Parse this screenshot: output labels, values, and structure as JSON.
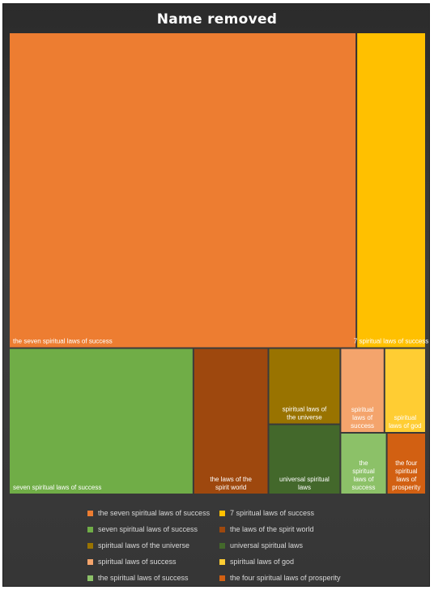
{
  "chart_data": {
    "type": "treemap",
    "title": "Name removed",
    "nodes": [
      {
        "label": "the seven spiritual laws of success",
        "value": 50.0,
        "color": "#ed7d31"
      },
      {
        "label": "7 spiritual laws of success",
        "value": 10.0,
        "color": "#ffc000"
      },
      {
        "label": "seven spiritual laws of success",
        "value": 12.3,
        "color": "#70ad47"
      },
      {
        "label": "the laws of the spirit world",
        "value": 5.0,
        "color": "#9e480e"
      },
      {
        "label": "spiritual laws of the universe",
        "value": 2.5,
        "color": "#997300"
      },
      {
        "label": "universal spiritual laws",
        "value": 2.3,
        "color": "#43682b"
      },
      {
        "label": "spiritual laws of success",
        "value": 1.7,
        "color": "#f4a46c"
      },
      {
        "label": "spiritual laws of god",
        "value": 1.6,
        "color": "#ffcd33"
      },
      {
        "label": "the spiritual laws of success",
        "value": 1.3,
        "color": "#8cc168"
      },
      {
        "label": "the four spiritual laws of prosperity",
        "value": 1.1,
        "color": "#d26012"
      }
    ],
    "legend_position": "bottom"
  }
}
